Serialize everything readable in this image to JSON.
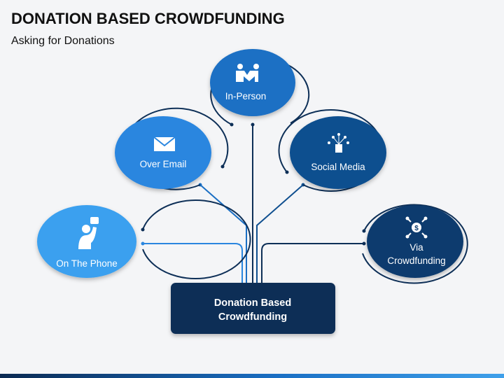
{
  "title": "DONATION BASED CROWDFUNDING",
  "subtitle": "Asking for Donations",
  "center": {
    "line1": "Donation Based",
    "line2": "Crowdfunding"
  },
  "nodes": {
    "in_person": {
      "label": "In-Person",
      "icon": "handshake-people-icon",
      "color": "#1a6fc4"
    },
    "over_email": {
      "label": "Over Email",
      "icon": "envelope-icon",
      "color": "#2a86df"
    },
    "social_media": {
      "label": "Social Media",
      "icon": "social-network-icon",
      "color": "#0f4f8f"
    },
    "on_the_phone": {
      "label": "On The Phone",
      "icon": "person-chat-icon",
      "color": "#3aa0ef"
    },
    "via_crowdfunding": {
      "line1": "Via",
      "line2": "Crowdfunding",
      "icon": "money-network-icon",
      "color": "#0d3b6e"
    }
  },
  "colors": {
    "center_box": "#0d2f57",
    "outer_ring": "#0d2f57",
    "connector": "#0d2f57",
    "connector_light": "#2a86df"
  }
}
